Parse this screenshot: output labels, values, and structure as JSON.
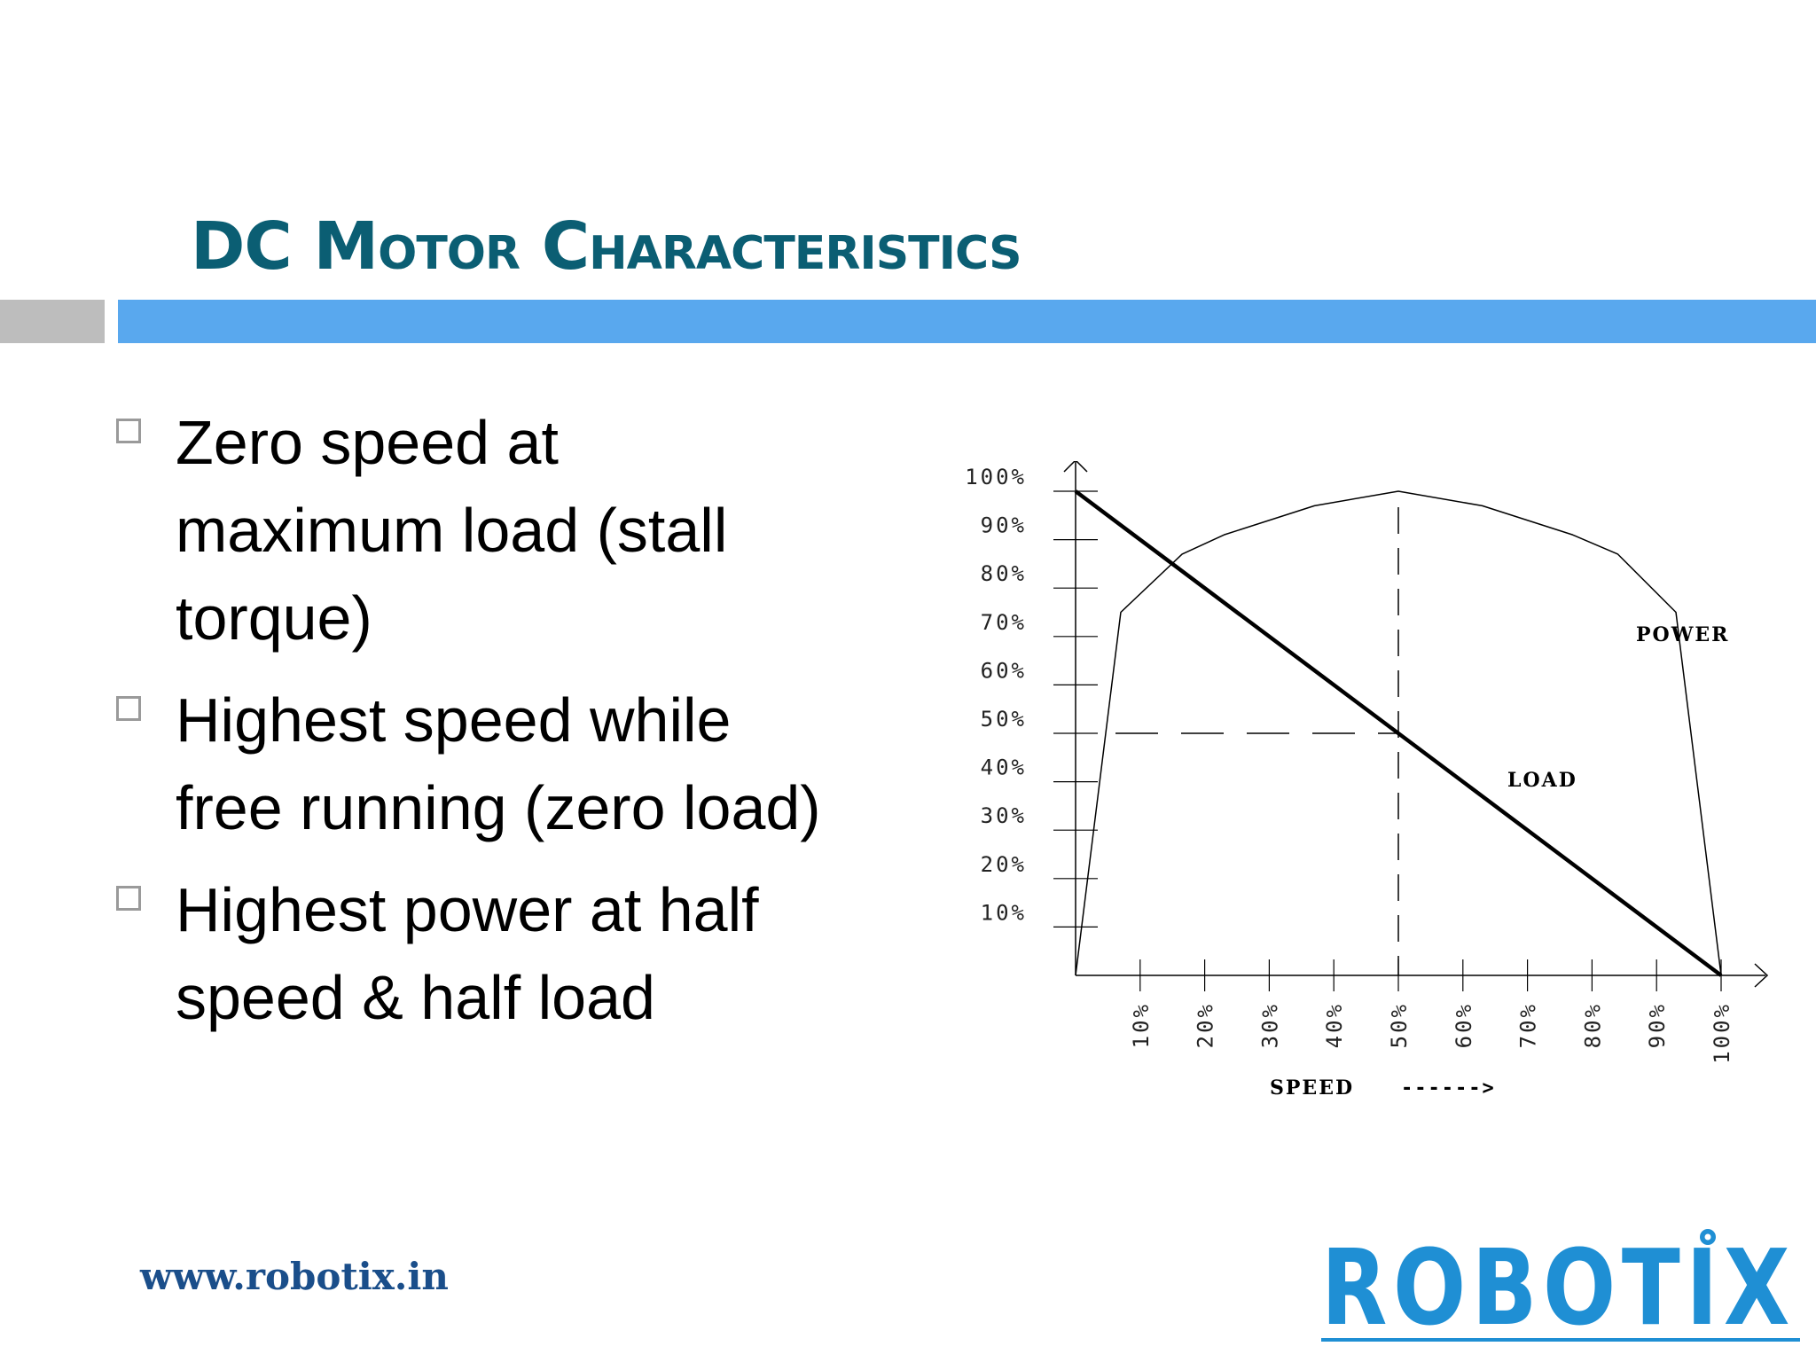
{
  "slide": {
    "title": "DC Motor Characteristics",
    "bullets": [
      "Zero speed at maximum load (stall torque)",
      "Highest speed while free running (zero load)",
      "Highest power at half speed & half load"
    ],
    "footer_url": "www.robotix.in",
    "logo_text": "ROBOTIX",
    "colors": {
      "title": "#0b5e73",
      "accent_bar": "#59a8ee",
      "logo": "#1f8fd4"
    }
  },
  "chart_data": {
    "type": "line",
    "x": [
      0,
      10,
      20,
      30,
      40,
      50,
      60,
      70,
      80,
      90,
      100
    ],
    "x_tick_labels": [
      "10%",
      "20%",
      "30%",
      "40%",
      "50%",
      "60%",
      "70%",
      "80%",
      "90%",
      "100%"
    ],
    "y_tick_labels": [
      "10%",
      "20%",
      "30%",
      "40%",
      "50%",
      "60%",
      "70%",
      "80%",
      "90%",
      "100%"
    ],
    "xlabel": "SPEED",
    "xlabel_arrow": "------>",
    "ylim": [
      0,
      100
    ],
    "xlim": [
      0,
      100
    ],
    "series": [
      {
        "name": "POWER",
        "values": [
          0,
          75,
          87,
          91,
          97,
          100,
          97,
          91,
          87,
          75,
          0
        ],
        "x": [
          0,
          7,
          16.5,
          23,
          37,
          50,
          63,
          77,
          84,
          93,
          100
        ]
      },
      {
        "name": "LOAD",
        "values": [
          100,
          0
        ],
        "x": [
          0,
          100
        ]
      }
    ],
    "annotations": {
      "reference_x": 50,
      "reference_y": 50
    },
    "grid": false
  }
}
